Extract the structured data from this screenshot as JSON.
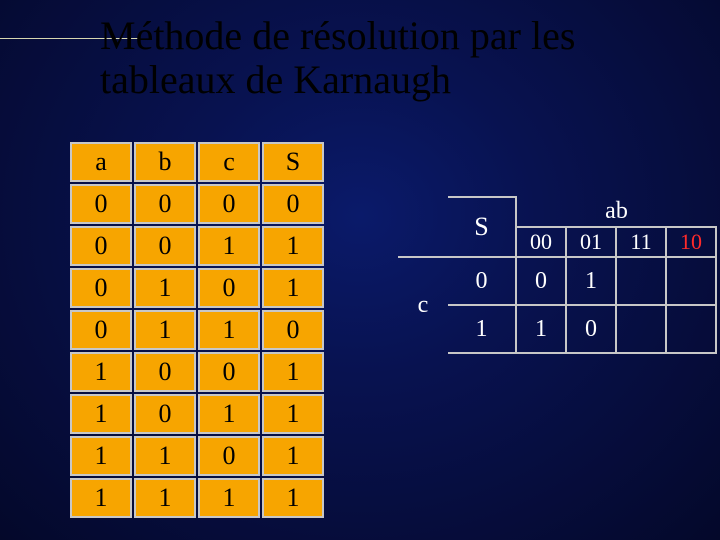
{
  "title": "Méthode de résolution par les tableaux de Karnaugh",
  "truth": {
    "headers": [
      "a",
      "b",
      "c",
      "S"
    ],
    "rows": [
      [
        "0",
        "0",
        "0",
        "0"
      ],
      [
        "0",
        "0",
        "1",
        "1"
      ],
      [
        "0",
        "1",
        "0",
        "1"
      ],
      [
        "0",
        "1",
        "1",
        "0"
      ],
      [
        "1",
        "0",
        "0",
        "1"
      ],
      [
        "1",
        "0",
        "1",
        "1"
      ],
      [
        "1",
        "1",
        "0",
        "1"
      ],
      [
        "1",
        "1",
        "1",
        "1"
      ]
    ],
    "cell_bg": "#f7a500",
    "border_color": "#c7c7c7",
    "font_size": 26
  },
  "kmap": {
    "output_label": "S",
    "col_var_label": "ab",
    "row_var_label": "c",
    "col_labels": [
      "00",
      "01",
      "11",
      "10"
    ],
    "row_labels": [
      "0",
      "1"
    ],
    "cells": [
      [
        "0",
        "1",
        "",
        ""
      ],
      [
        "1",
        "0",
        "",
        ""
      ]
    ],
    "col_label_red_index": 3,
    "text_color": "#ffffff",
    "red_color": "#ff2a2a",
    "border_color": "#c7c7c7",
    "font_size": 24
  },
  "colors": {
    "background_center": "#0a1a6a",
    "background_edge": "#04082a",
    "accent_line": "#d6d6b0"
  }
}
